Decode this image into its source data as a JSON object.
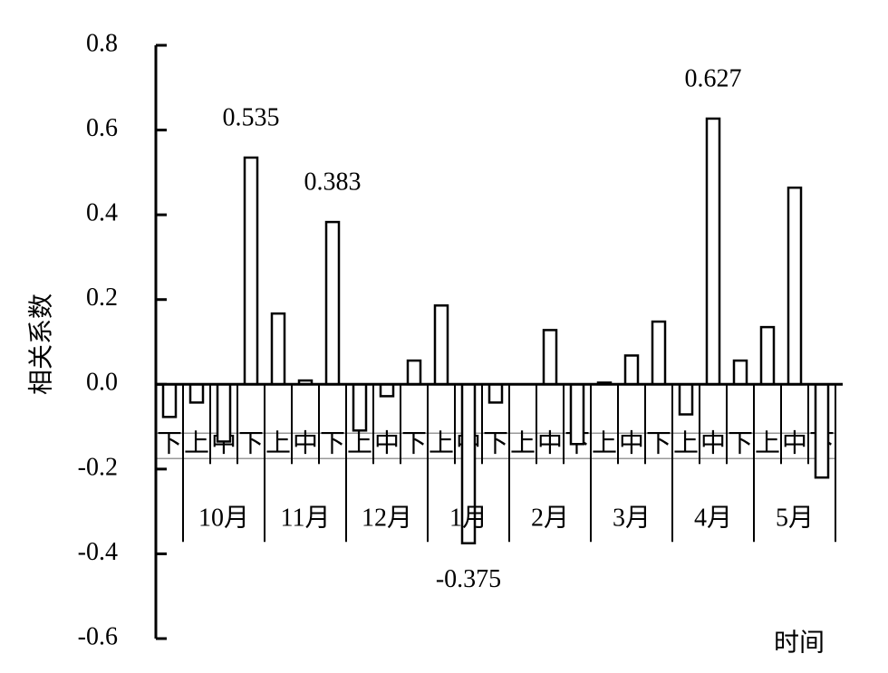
{
  "chart_data": {
    "type": "bar",
    "y_label": "相关系数",
    "x_label": "时间",
    "categories": [
      "下",
      "上",
      "中",
      "下",
      "上",
      "中",
      "下",
      "上",
      "中",
      "下",
      "上",
      "中",
      "下",
      "上",
      "中",
      "下",
      "上",
      "中",
      "下",
      "上",
      "中",
      "下",
      "上",
      "中",
      "下"
    ],
    "groups": [
      "10月",
      "11月",
      "12月",
      "1月",
      "2月",
      "3月",
      "4月",
      "5月"
    ],
    "values": [
      -0.077,
      -0.043,
      -0.135,
      0.535,
      0.167,
      0.009,
      0.383,
      -0.109,
      -0.028,
      0.056,
      0.186,
      -0.375,
      -0.043,
      0,
      0.128,
      -0.141,
      0.004,
      0.068,
      0.148,
      -0.071,
      0.627,
      0.056,
      0.135,
      0.464,
      -0.22
    ],
    "value_labels": [
      null,
      null,
      null,
      "0.535",
      null,
      null,
      "0.383",
      null,
      null,
      null,
      null,
      "-0.375",
      null,
      null,
      null,
      null,
      null,
      null,
      null,
      null,
      "0.627",
      null,
      null,
      null,
      null
    ],
    "color": "#ffffff",
    "ylim": [
      -0.6,
      0.8
    ],
    "yticks": [
      -0.6,
      -0.4,
      -0.2,
      {
        "value": 0,
        "label": "0.0"
      },
      0.2,
      0.4,
      0.6,
      0.8
    ]
  }
}
